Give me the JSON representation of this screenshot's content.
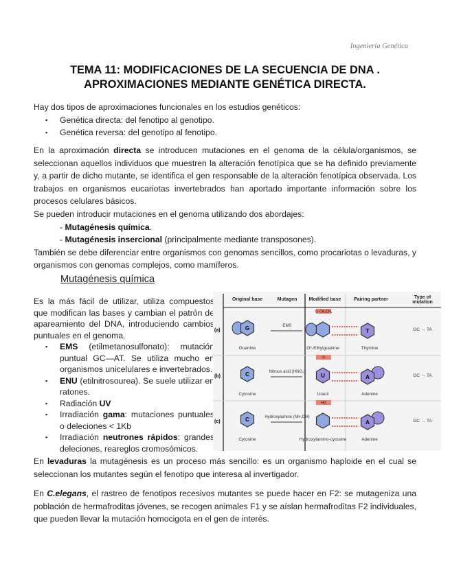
{
  "header": "Ingeniería Genética",
  "title": [
    "TEMA 11: MODIFICACIONES DE LA SECUENCIA DE DNA .",
    "APROXIMACIONES MEDIANTE GENÉTICA DIRECTA."
  ],
  "intro": "Hay dos tipos de aproximaciones funcionales en los estudios genéticos:",
  "intro_items": [
    "Genética directa: del fenotipo al genotipo.",
    "Genética reversa: del genotipo al fenotipo."
  ],
  "p1": {
    "a": "En la aproximación ",
    "b": "directa",
    "c": " se introducen mutaciones en el genoma de la célula/organismos, se seleccionan aquellos individuos que muestren la alteración fenotípica que se ha definido previamente y, a partir de dicho mutante, se identifica el gen responsable de la alteración fenotípica observada. Los trabajos en organismos eucariotas invertebrados han aportado importante información sobre los procesos celulares básicos."
  },
  "p2": {
    "lead": "Se pueden introducir mutaciones en el genoma utilizando dos abordajes:",
    "i1b": "Mutagénesis química",
    "i1c": ".",
    "i2b": "Mutagénesis insercional",
    "i2c": " (principalmente mediante transposones).",
    "tail": "También se debe diferenciar entre organismos con genomas sencillos, como procariotas o levaduras, y organismos con genomas complejos, como mamíferos."
  },
  "section": "Mutagénesis química",
  "chem": {
    "p": "Es la más fácil de utilizar, utiliza compuestos que modifican las bases y cambian el patrón de apareamiento del DNA, introduciendo cambios puntuales en el genoma.",
    "items": [
      {
        "b": "EMS",
        "c": " (etilmetanosulfonato): mutación puntual GC—AT. Se utiliza mucho en organismos unicelulares e invertebrados."
      },
      {
        "b": "ENU",
        "c": " (etilnitrosourea). Se suele utilizar en ratones."
      },
      {
        "a": "Radiación ",
        "b": "UV",
        "c": ""
      },
      {
        "a": "Irradiación ",
        "b": "gama",
        "c": ": mutaciones puntuales o deleciones < 1Kb"
      },
      {
        "a": "Irradiación ",
        "b": "neutrones rápidos",
        "c": ": grandes deleciones, reareglos cromosómicos."
      }
    ]
  },
  "figure": {
    "headers": [
      "Original base",
      "Mutagen",
      "Modified base",
      "Pairing partner",
      "Type of mutation"
    ],
    "rows": [
      {
        "label": "(a)",
        "orig": "Guanine",
        "orig_letter": "G",
        "mutagen": "EMS",
        "mod": "O⁶-Ethylguanine",
        "partner": "Thymine",
        "partner_letter": "T",
        "mutation": "GC → TA",
        "tag": "O–CH₂CH₃"
      },
      {
        "label": "(b)",
        "orig": "Cytosine",
        "orig_letter": "C",
        "mutagen": "Nitrous acid (HNO₂)",
        "mod": "Uracil",
        "mod_letter": "U",
        "partner": "Adenine",
        "partner_letter": "A",
        "mutation": "GC → TA",
        "tag": "O"
      },
      {
        "label": "(c)",
        "orig": "Cytosine",
        "orig_letter": "C",
        "mutagen": "Hydroxylamine (NH₂OH)",
        "mod": "Hydroxylamino-cytosine",
        "partner": "Adenine",
        "partner_letter": "A",
        "mutation": "GC → TA",
        "tag": "HO"
      }
    ],
    "colors": {
      "purine": "#8fa8e0",
      "pyrimidine": "#9b8fe0",
      "tag": "#f08070",
      "bond": "#e03020"
    }
  },
  "p3": {
    "a": "En ",
    "b": "levaduras",
    "c": " la mutagénesis es un proceso más sencillo: es un organismo haploide en el cual se seleccionan los mutantes según el fenotipo que interesa al invertigador."
  },
  "p4": {
    "a": "En ",
    "b": "C.elegans",
    "c": ", el rastreo de fenotipos recesivos mutantes se puede hacer en F2: se mutageniza una población de hermafroditas jóvenes, se recogen animales F1 y se aíslan hermafroditas F2 individuales, que pueden llevar la mutación homocigota en el gen de interés."
  }
}
